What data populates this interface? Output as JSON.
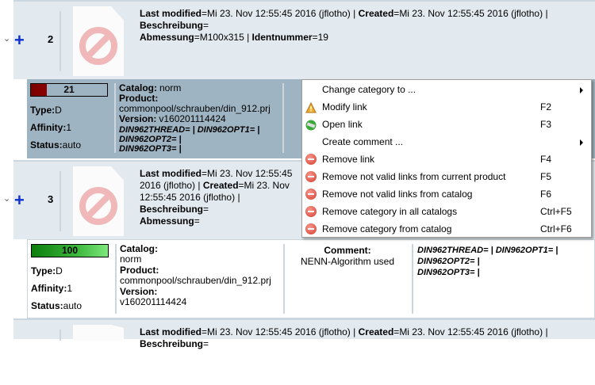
{
  "rows": [
    {
      "number": "2",
      "meta_line1": [
        {
          "k": "Last modified",
          "v": "Mi 23. Nov 12:55:45 2016 (jflotho)"
        },
        {
          "k": "Created",
          "v": "Mi 23. Nov 12:55:45 2016 (jflotho)"
        },
        {
          "k": "Beschreibung",
          "v": ""
        }
      ],
      "meta_line2": [
        {
          "k": "Abmessung",
          "v": "M100x315"
        },
        {
          "k": "Identnummer",
          "v": "19"
        }
      ],
      "detail": {
        "score": "21",
        "score_fraction": 0.21,
        "score_color": "#8b0000",
        "type_label": "Type:",
        "type": "D",
        "affinity_label": "Affinity:",
        "affinity": "1",
        "status_label": "Status:",
        "status": "auto",
        "catalog_label": "Catalog:",
        "catalog": "norm",
        "product_label": "Product:",
        "product": "commonpool/schrauben/din_912.prj",
        "version_label": "Version:",
        "version": "v160201114424",
        "attrs1": "DIN962THREAD= | DIN962OPT1= | DIN962OPT2= |",
        "attrs2": "DIN962OPT3= |"
      },
      "selected": true
    },
    {
      "number": "3",
      "meta_line1": [
        {
          "k": "Last modified",
          "v": "Mi 23. Nov 12:55:45 2016 (jflotho)"
        },
        {
          "k": "Created",
          "v": "Mi 23. Nov 12:55:45 2016 (jflotho)"
        },
        {
          "k": "Beschreibung",
          "v": ""
        }
      ],
      "meta_line2": [
        {
          "k": "Abmessung",
          "v": ""
        }
      ],
      "detail": {
        "score": "100",
        "score_fraction": 1.0,
        "score_color": "#1a9a1a",
        "type_label": "Type:",
        "type": "D",
        "affinity_label": "Affinity:",
        "affinity": "1",
        "status_label": "Status:",
        "status": "auto",
        "catalog_label": "Catalog:",
        "catalog": "norm",
        "product_label": "Product:",
        "product": "commonpool/schrauben/din_912.prj",
        "version_label": "Version:",
        "version": "v160201114424",
        "comment_label": "Comment:",
        "comment": "NENN-Algorithm used",
        "attrs1": "DIN962THREAD= | DIN962OPT1= | DIN962OPT2= |",
        "attrs2": "DIN962OPT3= |"
      },
      "selected": false
    },
    {
      "meta_line1": [
        {
          "k": "Last modified",
          "v": "Mi 23. Nov 12:55:45 2016 (jflotho)"
        },
        {
          "k": "Created",
          "v": "Mi 23. Nov 12:55:45 2016 (jflotho)"
        },
        {
          "k": "Beschreibung",
          "v": ""
        }
      ]
    }
  ],
  "context_menu": [
    {
      "label": "Change category to ...",
      "icon": "none",
      "submenu": true
    },
    {
      "label": "Modify link",
      "icon": "warning-icon",
      "shortcut": "F2"
    },
    {
      "label": "Open link",
      "icon": "open-link-icon",
      "shortcut": "F3"
    },
    {
      "label": "Create comment ...",
      "icon": "none",
      "submenu": true
    },
    {
      "label": "Remove link",
      "icon": "remove-icon",
      "shortcut": "F4"
    },
    {
      "label": "Remove not valid links from current product",
      "icon": "remove-icon",
      "shortcut": "F5"
    },
    {
      "label": "Remove not valid links from catalog",
      "icon": "remove-icon",
      "shortcut": "F6"
    },
    {
      "label": "Remove category in all catalogs",
      "icon": "remove-icon",
      "shortcut": "Ctrl+F5"
    },
    {
      "label": "Remove category from catalog",
      "icon": "remove-icon",
      "shortcut": "Ctrl+F6"
    }
  ]
}
